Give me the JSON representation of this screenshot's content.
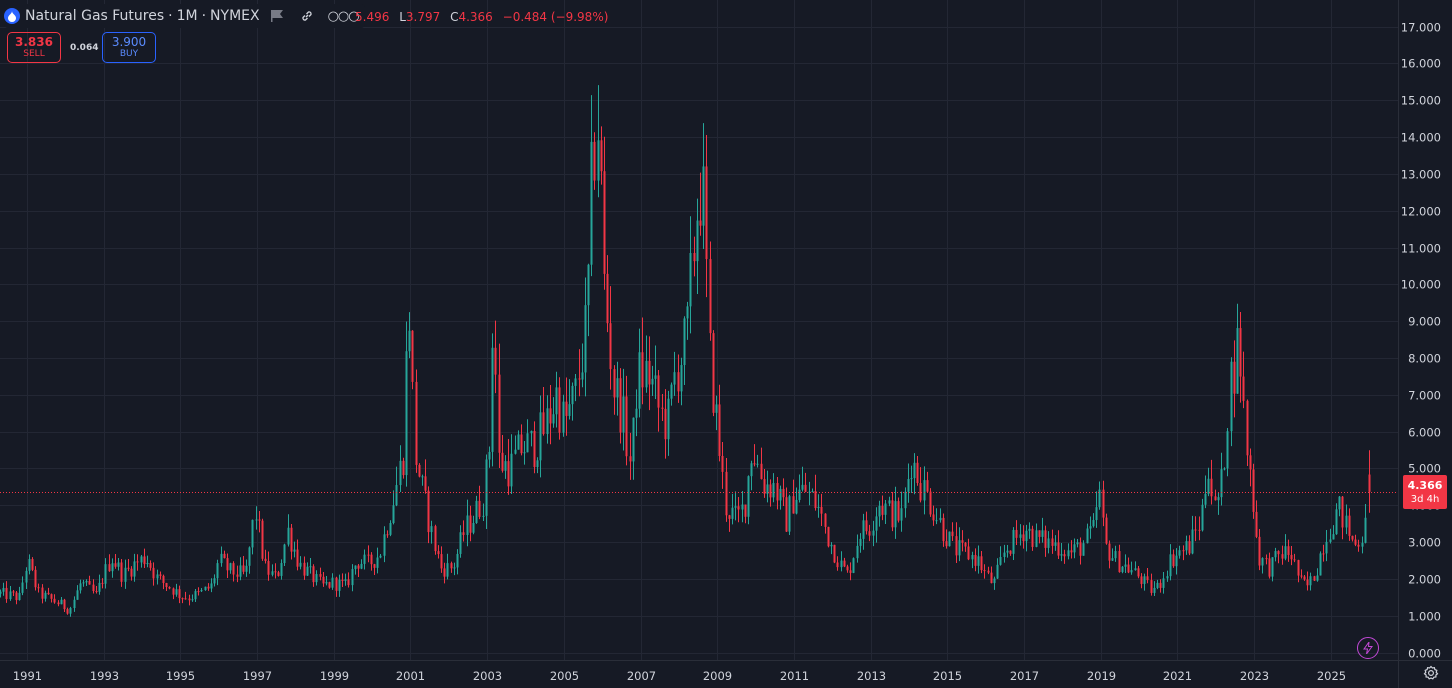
{
  "header": {
    "title": "Natural Gas Futures",
    "interval": "1M",
    "exchange": "NYMEX",
    "sep1": "·",
    "sep2": "·",
    "dots": "○○○"
  },
  "ohlc": {
    "h_value": "5.496",
    "l_key": "L",
    "l_value": "3.797",
    "c_key": "C",
    "c_value": "4.366",
    "change": "−0.484 (−9.98%)"
  },
  "trade": {
    "sell_price": "3.836",
    "sell_label": "SELL",
    "spread": "0.064",
    "buy_price": "3.900",
    "buy_label": "BUY"
  },
  "last_price": {
    "value": "4.366",
    "countdown": "3d 4h"
  },
  "colors": {
    "up": "#26a69a",
    "down": "#f23645",
    "background": "#161a25",
    "grid": "#232734"
  },
  "chart_data": {
    "type": "candlestick",
    "title": "",
    "y_ticks": [
      "0.000",
      "1.000",
      "2.000",
      "3.000",
      "4.000",
      "5.000",
      "6.000",
      "7.000",
      "8.000",
      "9.000",
      "10.000",
      "11.000",
      "12.000",
      "13.000",
      "14.000",
      "15.000",
      "16.000",
      "17.000"
    ],
    "ylim": [
      -0.2,
      17.45
    ],
    "x_ticks": [
      "1991",
      "1993",
      "1995",
      "1997",
      "1999",
      "2001",
      "2003",
      "2005",
      "2007",
      "2009",
      "2011",
      "2013",
      "2015",
      "2017",
      "2019",
      "2021",
      "2023",
      "2025"
    ],
    "xlim": [
      1990.3,
      2026.75
    ],
    "grid": true,
    "last_close": 4.366,
    "points": [
      [
        1990.3,
        1.6
      ],
      [
        1990.8,
        1.5
      ],
      [
        1991.0,
        2.5
      ],
      [
        1991.3,
        1.6
      ],
      [
        1991.6,
        1.45
      ],
      [
        1991.9,
        1.3
      ],
      [
        1992.1,
        1.15
      ],
      [
        1992.4,
        1.9
      ],
      [
        1992.8,
        1.55
      ],
      [
        1993.0,
        2.1
      ],
      [
        1993.2,
        2.6
      ],
      [
        1993.5,
        2.1
      ],
      [
        1993.8,
        2.4
      ],
      [
        1994.1,
        2.6
      ],
      [
        1994.4,
        2.0
      ],
      [
        1994.7,
        1.8
      ],
      [
        1995.0,
        1.55
      ],
      [
        1995.2,
        1.5
      ],
      [
        1995.5,
        1.6
      ],
      [
        1995.8,
        1.8
      ],
      [
        1996.0,
        2.5
      ],
      [
        1996.3,
        2.2
      ],
      [
        1996.7,
        2.1
      ],
      [
        1996.95,
        3.9
      ],
      [
        1997.2,
        2.3
      ],
      [
        1997.5,
        2.0
      ],
      [
        1997.8,
        3.3
      ],
      [
        1998.1,
        2.4
      ],
      [
        1998.4,
        2.1
      ],
      [
        1998.7,
        1.8
      ],
      [
        1999.0,
        1.9
      ],
      [
        1999.3,
        1.8
      ],
      [
        1999.6,
        2.5
      ],
      [
        1999.9,
        2.4
      ],
      [
        2000.2,
        2.7
      ],
      [
        2000.4,
        3.6
      ],
      [
        2000.6,
        4.4
      ],
      [
        2000.8,
        5.4
      ],
      [
        2000.95,
        9.8
      ],
      [
        2001.1,
        5.5
      ],
      [
        2001.3,
        4.4
      ],
      [
        2001.6,
        3.0
      ],
      [
        2001.8,
        2.3
      ],
      [
        2002.1,
        2.3
      ],
      [
        2002.4,
        3.3
      ],
      [
        2002.7,
        3.8
      ],
      [
        2002.9,
        4.2
      ],
      [
        2003.05,
        5.6
      ],
      [
        2003.15,
        9.5
      ],
      [
        2003.3,
        5.2
      ],
      [
        2003.6,
        5.0
      ],
      [
        2003.9,
        5.6
      ],
      [
        2004.2,
        5.6
      ],
      [
        2004.5,
        6.1
      ],
      [
        2004.8,
        7.0
      ],
      [
        2005.0,
        6.2
      ],
      [
        2005.3,
        7.0
      ],
      [
        2005.6,
        9.0
      ],
      [
        2005.75,
        13.5
      ],
      [
        2005.9,
        14.5
      ],
      [
        2006.05,
        10.0
      ],
      [
        2006.3,
        7.2
      ],
      [
        2006.5,
        6.6
      ],
      [
        2006.75,
        5.0
      ],
      [
        2006.9,
        7.5
      ],
      [
        2007.2,
        7.6
      ],
      [
        2007.5,
        6.5
      ],
      [
        2007.7,
        6.2
      ],
      [
        2007.9,
        7.6
      ],
      [
        2008.2,
        8.5
      ],
      [
        2008.45,
        12.0
      ],
      [
        2008.6,
        13.0
      ],
      [
        2008.8,
        8.0
      ],
      [
        2009.0,
        6.0
      ],
      [
        2009.2,
        4.0
      ],
      [
        2009.5,
        3.6
      ],
      [
        2009.7,
        4.0
      ],
      [
        2009.9,
        5.6
      ],
      [
        2010.2,
        4.6
      ],
      [
        2010.5,
        4.5
      ],
      [
        2010.8,
        3.6
      ],
      [
        2011.0,
        4.3
      ],
      [
        2011.3,
        4.4
      ],
      [
        2011.6,
        4.0
      ],
      [
        2011.9,
        3.1
      ],
      [
        2012.2,
        2.4
      ],
      [
        2012.4,
        2.1
      ],
      [
        2012.7,
        3.3
      ],
      [
        2012.95,
        3.4
      ],
      [
        2013.2,
        4.1
      ],
      [
        2013.5,
        3.8
      ],
      [
        2013.8,
        3.7
      ],
      [
        2014.05,
        5.3
      ],
      [
        2014.3,
        4.6
      ],
      [
        2014.6,
        4.0
      ],
      [
        2014.9,
        3.3
      ],
      [
        2015.2,
        2.8
      ],
      [
        2015.5,
        2.7
      ],
      [
        2015.8,
        2.5
      ],
      [
        2016.0,
        2.1
      ],
      [
        2016.2,
        1.85
      ],
      [
        2016.5,
        2.8
      ],
      [
        2016.8,
        3.1
      ],
      [
        2017.0,
        3.4
      ],
      [
        2017.3,
        3.1
      ],
      [
        2017.6,
        3.0
      ],
      [
        2017.9,
        2.9
      ],
      [
        2018.2,
        2.7
      ],
      [
        2018.5,
        2.9
      ],
      [
        2018.8,
        3.3
      ],
      [
        2018.95,
        4.4
      ],
      [
        2019.1,
        2.9
      ],
      [
        2019.4,
        2.5
      ],
      [
        2019.7,
        2.3
      ],
      [
        2019.95,
        2.1
      ],
      [
        2020.3,
        1.7
      ],
      [
        2020.5,
        1.8
      ],
      [
        2020.8,
        2.5
      ],
      [
        2021.0,
        2.7
      ],
      [
        2021.3,
        2.9
      ],
      [
        2021.6,
        3.6
      ],
      [
        2021.8,
        5.2
      ],
      [
        2021.95,
        3.8
      ],
      [
        2022.15,
        4.6
      ],
      [
        2022.35,
        7.3
      ],
      [
        2022.6,
        8.5
      ],
      [
        2022.75,
        6.0
      ],
      [
        2022.95,
        4.3
      ],
      [
        2023.1,
        2.6
      ],
      [
        2023.4,
        2.3
      ],
      [
        2023.7,
        2.7
      ],
      [
        2023.95,
        2.7
      ],
      [
        2024.2,
        1.9
      ],
      [
        2024.4,
        1.8
      ],
      [
        2024.6,
        2.2
      ],
      [
        2024.8,
        3.0
      ],
      [
        2025.0,
        3.5
      ],
      [
        2025.2,
        3.9
      ],
      [
        2025.4,
        3.4
      ],
      [
        2025.6,
        2.9
      ],
      [
        2025.8,
        3.2
      ],
      [
        2025.95,
        4.6
      ]
    ]
  }
}
